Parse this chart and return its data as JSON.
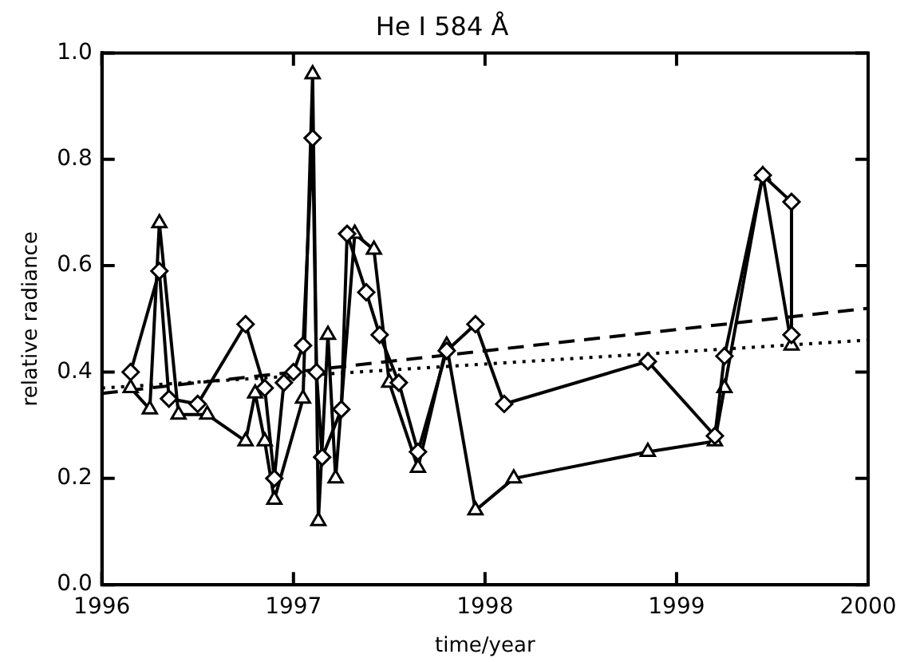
{
  "chart_data": {
    "type": "line",
    "title": "He I 584 Å",
    "xlabel": "time/year",
    "ylabel": "relative radiance",
    "xlim": [
      1996,
      2000
    ],
    "xticks": [
      1996,
      1997,
      1998,
      1999,
      2000
    ],
    "ylim": [
      0,
      1
    ],
    "yticks": [
      {
        "value": 0,
        "label": "0.0"
      },
      0.2,
      0.4,
      0.6,
      0.8,
      {
        "value": 1,
        "label": "1.0"
      }
    ],
    "grid": false,
    "legend": false,
    "series": [
      {
        "color": "#000000",
        "marker": "diamond",
        "x": [
          1996.15,
          1996.3,
          1996.35,
          1996.5,
          1996.75,
          1996.85,
          1996.9,
          1996.95,
          1997.0,
          1997.05,
          1997.1,
          1997.12,
          1997.15,
          1997.25,
          1997.28,
          1997.38,
          1997.45,
          1997.55,
          1997.65,
          1997.8,
          1997.95,
          1998.1,
          1998.85,
          1999.2,
          1999.25,
          1999.45,
          1999.6,
          1999.6
        ],
        "values": [
          0.4,
          0.59,
          0.35,
          0.34,
          0.49,
          0.37,
          0.2,
          0.38,
          0.4,
          0.45,
          0.84,
          0.4,
          0.24,
          0.33,
          0.66,
          0.55,
          0.47,
          0.38,
          0.25,
          0.44,
          0.49,
          0.34,
          0.42,
          0.28,
          0.43,
          0.77,
          0.72,
          0.47
        ]
      },
      {
        "color": "#000000",
        "marker": "triangle",
        "x": [
          1996.15,
          1996.25,
          1996.3,
          1996.4,
          1996.55,
          1996.75,
          1996.8,
          1996.85,
          1996.9,
          1997.05,
          1997.1,
          1997.13,
          1997.18,
          1997.22,
          1997.32,
          1997.42,
          1997.5,
          1997.65,
          1997.8,
          1997.95,
          1998.15,
          1998.85,
          1999.2,
          1999.25,
          1999.45,
          1999.6
        ],
        "values": [
          0.37,
          0.33,
          0.68,
          0.32,
          0.32,
          0.27,
          0.36,
          0.27,
          0.16,
          0.35,
          0.96,
          0.12,
          0.47,
          0.2,
          0.66,
          0.63,
          0.38,
          0.22,
          0.45,
          0.14,
          0.2,
          0.25,
          0.27,
          0.37,
          0.77,
          0.45
        ]
      },
      {
        "color": "#000000",
        "marker": "none",
        "line_style": "dashed",
        "x": [
          1996,
          2000
        ],
        "values": [
          0.36,
          0.52
        ]
      },
      {
        "color": "#000000",
        "marker": "none",
        "line_style": "dotted",
        "x": [
          1996,
          2000
        ],
        "values": [
          0.37,
          0.46
        ]
      }
    ]
  }
}
